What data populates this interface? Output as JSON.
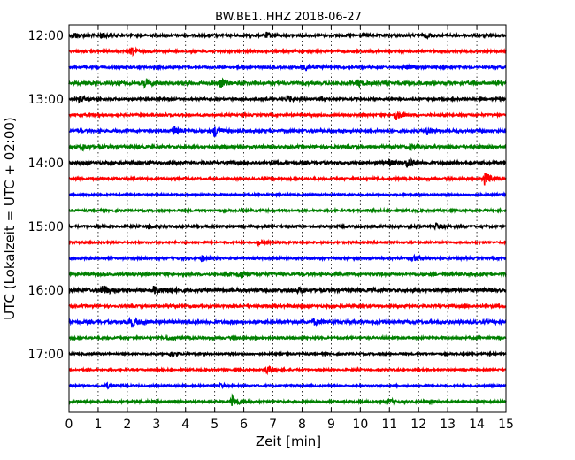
{
  "chart_data": {
    "type": "line",
    "title": "BW.BE1..HHZ 2018-06-27",
    "xlabel": "Zeit  [min]",
    "ylabel": "UTC (Lokalzeit = UTC + 02:00)",
    "xlim": [
      0,
      15
    ],
    "x_ticks": [
      "0",
      "1",
      "2",
      "3",
      "4",
      "5",
      "6",
      "7",
      "8",
      "9",
      "10",
      "11",
      "12",
      "13",
      "14",
      "15"
    ],
    "y_ticks": [
      "12:00",
      "13:00",
      "14:00",
      "15:00",
      "16:00",
      "17:00"
    ],
    "grid": "vertical dotted lines",
    "trace_colors": [
      "#000000",
      "#ff0000",
      "#0000ff",
      "#008000"
    ],
    "traces_per_hour": 4,
    "trace_interval_min": 15,
    "series": [
      {
        "start": "12:00",
        "color": "#000000",
        "amplitude": 0.2,
        "events": [
          {
            "t": 0.15,
            "amp": 0.5
          },
          {
            "t": 1.1,
            "amp": 0.4
          },
          {
            "t": 6.75,
            "amp": 0.5
          },
          {
            "t": 12.3,
            "amp": 0.3
          }
        ]
      },
      {
        "start": "12:15",
        "color": "#ff0000",
        "amplitude": 0.18,
        "events": [
          {
            "t": 2.15,
            "amp": 0.6
          },
          {
            "t": 9.8,
            "amp": 0.3
          }
        ]
      },
      {
        "start": "12:30",
        "color": "#0000ff",
        "amplitude": 0.18,
        "events": [
          {
            "t": 8.1,
            "amp": 0.7
          },
          {
            "t": 11.6,
            "amp": 0.3
          }
        ]
      },
      {
        "start": "12:45",
        "color": "#008000",
        "amplitude": 0.25,
        "events": [
          {
            "t": 2.6,
            "amp": 0.5
          },
          {
            "t": 5.2,
            "amp": 0.7
          },
          {
            "t": 9.9,
            "amp": 0.5
          }
        ]
      },
      {
        "start": "13:00",
        "color": "#000000",
        "amplitude": 0.18,
        "events": [
          {
            "t": 0.35,
            "amp": 0.4
          },
          {
            "t": 7.5,
            "amp": 0.6
          }
        ]
      },
      {
        "start": "13:15",
        "color": "#ff0000",
        "amplitude": 0.18,
        "events": [
          {
            "t": 11.2,
            "amp": 0.9
          }
        ]
      },
      {
        "start": "13:30",
        "color": "#0000ff",
        "amplitude": 0.22,
        "events": [
          {
            "t": 3.6,
            "amp": 0.8
          },
          {
            "t": 5.0,
            "amp": 1.0
          },
          {
            "t": 12.3,
            "amp": 0.6
          }
        ]
      },
      {
        "start": "13:45",
        "color": "#008000",
        "amplitude": 0.22,
        "events": [
          {
            "t": 0.45,
            "amp": 0.6
          },
          {
            "t": 11.7,
            "amp": 0.4
          }
        ]
      },
      {
        "start": "14:00",
        "color": "#000000",
        "amplitude": 0.22,
        "events": [
          {
            "t": 11.6,
            "amp": 0.9
          },
          {
            "t": 11.0,
            "amp": 0.4
          }
        ]
      },
      {
        "start": "14:15",
        "color": "#ff0000",
        "amplitude": 0.18,
        "events": [
          {
            "t": 14.25,
            "amp": 1.2
          }
        ]
      },
      {
        "start": "14:30",
        "color": "#0000ff",
        "amplitude": 0.15,
        "events": []
      },
      {
        "start": "14:45",
        "color": "#008000",
        "amplitude": 0.17,
        "events": []
      },
      {
        "start": "15:00",
        "color": "#000000",
        "amplitude": 0.18,
        "events": [
          {
            "t": 12.6,
            "amp": 0.5
          },
          {
            "t": 2.7,
            "amp": 0.3
          }
        ]
      },
      {
        "start": "15:15",
        "color": "#ff0000",
        "amplitude": 0.15,
        "events": [
          {
            "t": 6.5,
            "amp": 0.4
          }
        ]
      },
      {
        "start": "15:30",
        "color": "#0000ff",
        "amplitude": 0.18,
        "events": [
          {
            "t": 4.55,
            "amp": 0.5
          },
          {
            "t": 11.8,
            "amp": 0.5
          }
        ]
      },
      {
        "start": "15:45",
        "color": "#008000",
        "amplitude": 0.2,
        "events": [
          {
            "t": 5.85,
            "amp": 0.6
          }
        ]
      },
      {
        "start": "16:00",
        "color": "#000000",
        "amplitude": 0.25,
        "events": [
          {
            "t": 1.15,
            "amp": 0.9
          },
          {
            "t": 2.9,
            "amp": 0.8
          },
          {
            "t": 3.4,
            "amp": 0.5
          },
          {
            "t": 7.9,
            "amp": 0.4
          }
        ]
      },
      {
        "start": "16:15",
        "color": "#ff0000",
        "amplitude": 0.2,
        "events": []
      },
      {
        "start": "16:30",
        "color": "#0000ff",
        "amplitude": 0.25,
        "events": [
          {
            "t": 2.1,
            "amp": 1.0
          },
          {
            "t": 8.4,
            "amp": 0.4
          }
        ]
      },
      {
        "start": "16:45",
        "color": "#008000",
        "amplitude": 0.18,
        "events": [
          {
            "t": 3.4,
            "amp": 0.3
          }
        ]
      },
      {
        "start": "17:00",
        "color": "#000000",
        "amplitude": 0.15,
        "events": [
          {
            "t": 3.5,
            "amp": 0.4
          }
        ]
      },
      {
        "start": "17:15",
        "color": "#ff0000",
        "amplitude": 0.15,
        "events": [
          {
            "t": 6.75,
            "amp": 0.8
          }
        ]
      },
      {
        "start": "17:30",
        "color": "#0000ff",
        "amplitude": 0.15,
        "events": [
          {
            "t": 1.3,
            "amp": 0.4
          },
          {
            "t": 5.2,
            "amp": 0.3
          }
        ]
      },
      {
        "start": "17:45",
        "color": "#008000",
        "amplitude": 0.18,
        "events": [
          {
            "t": 5.6,
            "amp": 1.0
          },
          {
            "t": 11.0,
            "amp": 0.3
          }
        ]
      }
    ]
  }
}
